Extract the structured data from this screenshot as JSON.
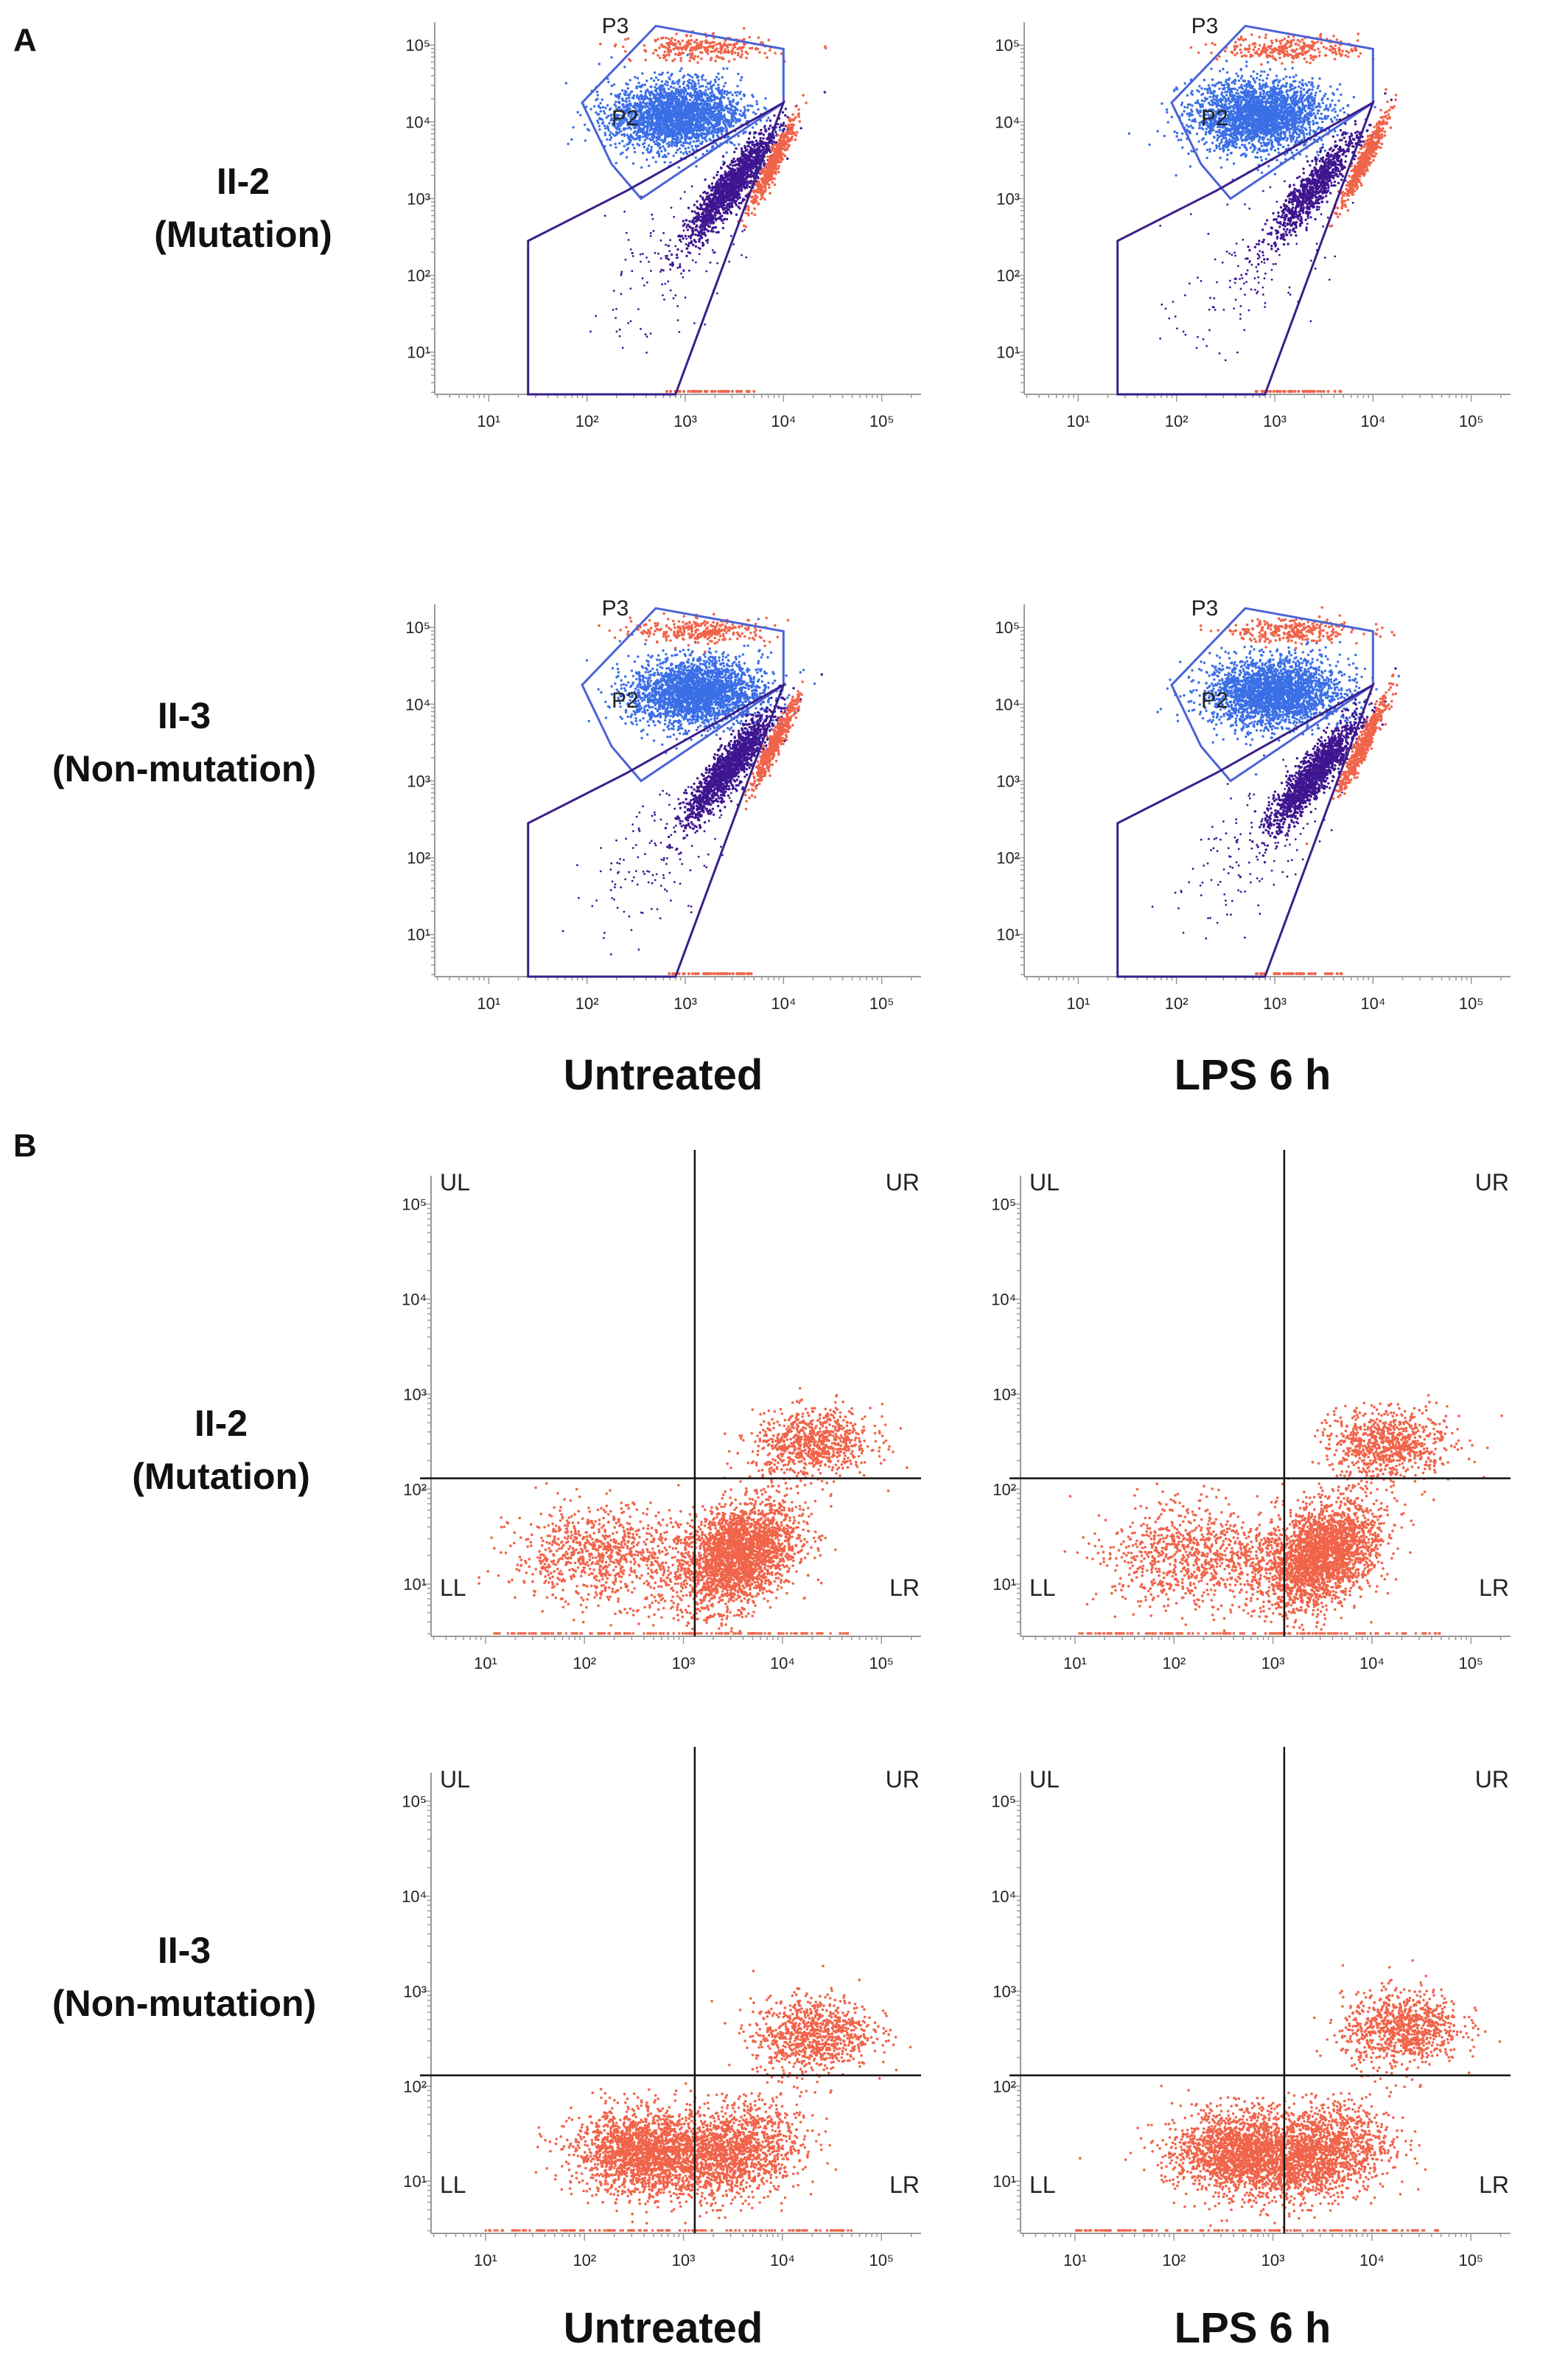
{
  "figure": {
    "panel_a_label": "A",
    "panel_b_label": "B",
    "rows": [
      {
        "line1": "II-2",
        "line2": "(Mutation)"
      },
      {
        "line1": "II-3",
        "line2": "(Non-mutation)"
      }
    ],
    "columns": [
      "Untreated",
      "LPS 6 h"
    ]
  },
  "colors": {
    "p2_blue": "#3b6fe6",
    "p3_purple": "#3f1690",
    "salmon": "#f0644a",
    "gate_blue": "#4b63d6",
    "gate_purple": "#3a1f8a"
  },
  "chart_data": [
    {
      "type": "scatter",
      "panel": "A",
      "row": "II-2 (Mutation)",
      "condition": "Untreated",
      "xscale": "log",
      "yscale": "log",
      "x_ticks": [
        "10¹",
        "10²",
        "10³",
        "10⁴",
        "10⁵"
      ],
      "y_ticks": [
        "10¹",
        "10²",
        "10³",
        "10⁴",
        "10⁵"
      ],
      "gates": [
        "P3",
        "P2"
      ],
      "clusters": [
        {
          "gate": "P2",
          "center_x": 800,
          "center_y": 12000,
          "density": "high"
        },
        {
          "gate": "P3",
          "center_x": 3000,
          "center_y": 1500,
          "density": "high"
        }
      ]
    },
    {
      "type": "scatter",
      "panel": "A",
      "row": "II-2 (Mutation)",
      "condition": "LPS 6 h",
      "xscale": "log",
      "yscale": "log",
      "x_ticks": [
        "10¹",
        "10²",
        "10³",
        "10⁴",
        "10⁵"
      ],
      "y_ticks": [
        "10¹",
        "10²",
        "10³",
        "10⁴",
        "10⁵"
      ],
      "gates": [
        "P3",
        "P2"
      ],
      "clusters": [
        {
          "gate": "P2",
          "center_x": 700,
          "center_y": 12000,
          "density": "high"
        },
        {
          "gate": "P3",
          "center_x": 2500,
          "center_y": 1400,
          "density": "medium"
        }
      ]
    },
    {
      "type": "scatter",
      "panel": "A",
      "row": "II-3 (Non-mutation)",
      "condition": "Untreated",
      "xscale": "log",
      "yscale": "log",
      "x_ticks": [
        "10¹",
        "10²",
        "10³",
        "10⁴",
        "10⁵"
      ],
      "y_ticks": [
        "10¹",
        "10²",
        "10³",
        "10⁴",
        "10⁵"
      ],
      "gates": [
        "P3",
        "P2"
      ],
      "clusters": [
        {
          "gate": "P2",
          "center_x": 1300,
          "center_y": 14000,
          "density": "high"
        },
        {
          "gate": "P3",
          "center_x": 2800,
          "center_y": 1500,
          "density": "high"
        }
      ]
    },
    {
      "type": "scatter",
      "panel": "A",
      "row": "II-3 (Non-mutation)",
      "condition": "LPS 6 h",
      "xscale": "log",
      "yscale": "log",
      "x_ticks": [
        "10¹",
        "10²",
        "10³",
        "10⁴",
        "10⁵"
      ],
      "y_ticks": [
        "10¹",
        "10²",
        "10³",
        "10⁴",
        "10⁵"
      ],
      "gates": [
        "P3",
        "P2"
      ],
      "clusters": [
        {
          "gate": "P2",
          "center_x": 1000,
          "center_y": 14000,
          "density": "high"
        },
        {
          "gate": "P3",
          "center_x": 2500,
          "center_y": 1200,
          "density": "high"
        }
      ]
    },
    {
      "type": "scatter",
      "panel": "B",
      "row": "II-2 (Mutation)",
      "condition": "Untreated",
      "xscale": "log",
      "yscale": "log",
      "x_ticks": [
        "10¹",
        "10²",
        "10³",
        "10⁴",
        "10⁵"
      ],
      "y_ticks": [
        "10¹",
        "10²",
        "10³",
        "10⁴",
        "10⁵"
      ],
      "quadrants": [
        "UL",
        "UR",
        "LL",
        "LR"
      ],
      "x_threshold": 1300,
      "y_threshold": 130,
      "clusters": [
        {
          "center_x": 3500,
          "center_y": 20,
          "density": "high"
        },
        {
          "center_x": 20000,
          "center_y": 300,
          "density": "medium"
        },
        {
          "center_x": 150,
          "center_y": 20,
          "density": "medium"
        }
      ]
    },
    {
      "type": "scatter",
      "panel": "B",
      "row": "II-2 (Mutation)",
      "condition": "LPS 6 h",
      "xscale": "log",
      "yscale": "log",
      "x_ticks": [
        "10¹",
        "10²",
        "10³",
        "10⁴",
        "10⁵"
      ],
      "y_ticks": [
        "10¹",
        "10²",
        "10³",
        "10⁴",
        "10⁵"
      ],
      "quadrants": [
        "UL",
        "UR",
        "LL",
        "LR"
      ],
      "x_threshold": 1300,
      "y_threshold": 130,
      "clusters": [
        {
          "center_x": 3000,
          "center_y": 20,
          "density": "high"
        },
        {
          "center_x": 15000,
          "center_y": 300,
          "density": "medium"
        },
        {
          "center_x": 150,
          "center_y": 20,
          "density": "medium"
        }
      ]
    },
    {
      "type": "scatter",
      "panel": "B",
      "row": "II-3 (Non-mutation)",
      "condition": "Untreated",
      "xscale": "log",
      "yscale": "log",
      "x_ticks": [
        "10¹",
        "10²",
        "10³",
        "10⁴",
        "10⁵"
      ],
      "y_ticks": [
        "10¹",
        "10²",
        "10³",
        "10⁴",
        "10⁵"
      ],
      "quadrants": [
        "UL",
        "UR",
        "LL",
        "LR"
      ],
      "x_threshold": 1300,
      "y_threshold": 130,
      "clusters": [
        {
          "center_x": 400,
          "center_y": 20,
          "density": "high"
        },
        {
          "center_x": 3000,
          "center_y": 20,
          "density": "high"
        },
        {
          "center_x": 20000,
          "center_y": 350,
          "density": "medium"
        }
      ]
    },
    {
      "type": "scatter",
      "panel": "B",
      "row": "II-3 (Non-mutation)",
      "condition": "LPS 6 h",
      "xscale": "log",
      "yscale": "log",
      "x_ticks": [
        "10¹",
        "10²",
        "10³",
        "10⁴",
        "10⁵"
      ],
      "y_ticks": [
        "10¹",
        "10²",
        "10³",
        "10⁴",
        "10⁵"
      ],
      "quadrants": [
        "UL",
        "UR",
        "LL",
        "LR"
      ],
      "x_threshold": 1300,
      "y_threshold": 130,
      "clusters": [
        {
          "center_x": 500,
          "center_y": 20,
          "density": "high"
        },
        {
          "center_x": 3000,
          "center_y": 20,
          "density": "high"
        },
        {
          "center_x": 20000,
          "center_y": 400,
          "density": "medium"
        }
      ]
    }
  ]
}
